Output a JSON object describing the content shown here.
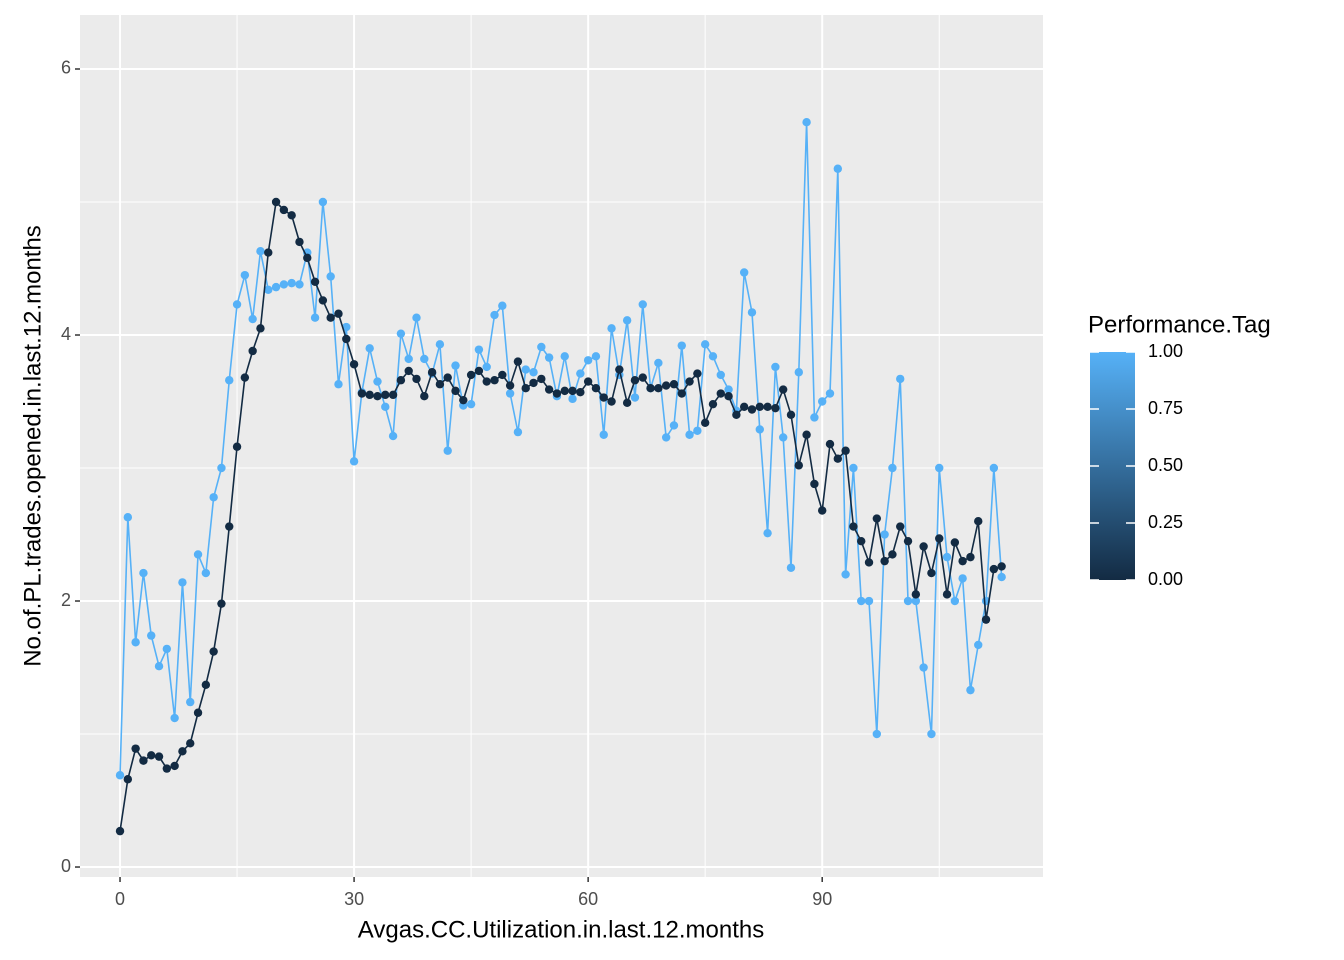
{
  "chart_data": {
    "type": "line",
    "xlabel": "Avgas.CC.Utilization.in.last.12.months",
    "ylabel": "No.of.PL.trades.opened.in.last.12.months",
    "x": [
      0,
      1,
      2,
      3,
      4,
      5,
      6,
      7,
      8,
      9,
      10,
      11,
      12,
      13,
      14,
      15,
      16,
      17,
      18,
      19,
      20,
      21,
      22,
      23,
      24,
      25,
      26,
      27,
      28,
      29,
      30,
      31,
      32,
      33,
      34,
      35,
      36,
      37,
      38,
      39,
      40,
      41,
      42,
      43,
      44,
      45,
      46,
      47,
      48,
      49,
      50,
      51,
      52,
      53,
      54,
      55,
      56,
      57,
      58,
      59,
      60,
      61,
      62,
      63,
      64,
      65,
      66,
      67,
      68,
      69,
      70,
      71,
      72,
      73,
      74,
      75,
      76,
      77,
      78,
      79,
      80,
      81,
      82,
      83,
      84,
      85,
      86,
      87,
      88,
      89,
      90,
      91,
      92,
      93,
      94,
      95,
      96,
      97,
      98,
      99,
      100,
      101,
      102,
      103,
      104,
      105,
      106,
      107,
      108,
      109,
      110,
      111,
      112,
      113
    ],
    "series": [
      {
        "color": "#56B1F7",
        "values": [
          0.69,
          2.63,
          1.69,
          2.21,
          1.74,
          1.51,
          1.64,
          1.12,
          2.14,
          1.24,
          2.35,
          2.21,
          2.78,
          3.0,
          3.66,
          4.23,
          4.45,
          4.12,
          4.63,
          4.34,
          4.36,
          4.38,
          4.39,
          4.38,
          4.62,
          4.13,
          5.0,
          4.44,
          3.63,
          4.06,
          3.05,
          3.57,
          3.9,
          3.65,
          3.46,
          3.24,
          4.01,
          3.82,
          4.13,
          3.82,
          3.71,
          3.93,
          3.13,
          3.77,
          3.47,
          3.48,
          3.89,
          3.76,
          4.15,
          4.22,
          3.56,
          3.27,
          3.74,
          3.72,
          3.91,
          3.83,
          3.54,
          3.84,
          3.52,
          3.71,
          3.81,
          3.84,
          3.25,
          4.05,
          3.7,
          4.11,
          3.53,
          4.23,
          3.6,
          3.79,
          3.23,
          3.32,
          3.92,
          3.25,
          3.28,
          3.93,
          3.84,
          3.7,
          3.59,
          3.43,
          4.47,
          4.17,
          3.29,
          2.51,
          3.76,
          3.23,
          2.25,
          3.72,
          5.6,
          3.38,
          3.5,
          3.56,
          5.25,
          2.2,
          3.0,
          2.0,
          2.0,
          1.0,
          2.5,
          3.0,
          3.67,
          2.0,
          2.0,
          1.5,
          1.0,
          3.0,
          2.33,
          2.0,
          2.17,
          1.33,
          1.67,
          2.0,
          3.0,
          2.18
        ]
      },
      {
        "color": "#132B43",
        "values": [
          0.27,
          0.66,
          0.89,
          0.8,
          0.84,
          0.83,
          0.74,
          0.76,
          0.87,
          0.93,
          1.16,
          1.37,
          1.62,
          1.98,
          2.56,
          3.16,
          3.68,
          3.88,
          4.05,
          4.62,
          5.0,
          4.94,
          4.9,
          4.7,
          4.58,
          4.4,
          4.26,
          4.13,
          4.16,
          3.97,
          3.78,
          3.56,
          3.55,
          3.54,
          3.55,
          3.55,
          3.66,
          3.73,
          3.67,
          3.54,
          3.72,
          3.63,
          3.68,
          3.58,
          3.51,
          3.7,
          3.73,
          3.65,
          3.66,
          3.7,
          3.62,
          3.8,
          3.6,
          3.64,
          3.67,
          3.59,
          3.56,
          3.58,
          3.58,
          3.57,
          3.65,
          3.6,
          3.53,
          3.5,
          3.74,
          3.49,
          3.66,
          3.68,
          3.6,
          3.6,
          3.62,
          3.63,
          3.56,
          3.65,
          3.71,
          3.34,
          3.48,
          3.56,
          3.54,
          3.4,
          3.46,
          3.44,
          3.46,
          3.46,
          3.45,
          3.59,
          3.4,
          3.02,
          3.25,
          2.88,
          2.68,
          3.18,
          3.07,
          3.13,
          2.56,
          2.45,
          2.29,
          2.62,
          2.3,
          2.35,
          2.56,
          2.45,
          2.05,
          2.41,
          2.21,
          2.47,
          2.05,
          2.44,
          2.3,
          2.33,
          2.6,
          1.86,
          2.24,
          2.26
        ]
      }
    ],
    "xlim": [
      -5.13,
      118.3
    ],
    "ylim": [
      -0.075,
      6.406
    ],
    "xticks": [
      0,
      30,
      60,
      90
    ],
    "yticks": [
      0,
      2,
      4,
      6
    ],
    "grid": true,
    "legend": {
      "title": "Performance.Tag",
      "colors": [
        "#132B43",
        "#56B1F7"
      ],
      "ticks": [
        {
          "value": 0,
          "label": "0.00"
        },
        {
          "value": 0.25,
          "label": "0.25"
        },
        {
          "value": 0.5,
          "label": "0.50"
        },
        {
          "value": 0.75,
          "label": "0.75"
        },
        {
          "value": 1,
          "label": "1.00"
        }
      ]
    }
  }
}
